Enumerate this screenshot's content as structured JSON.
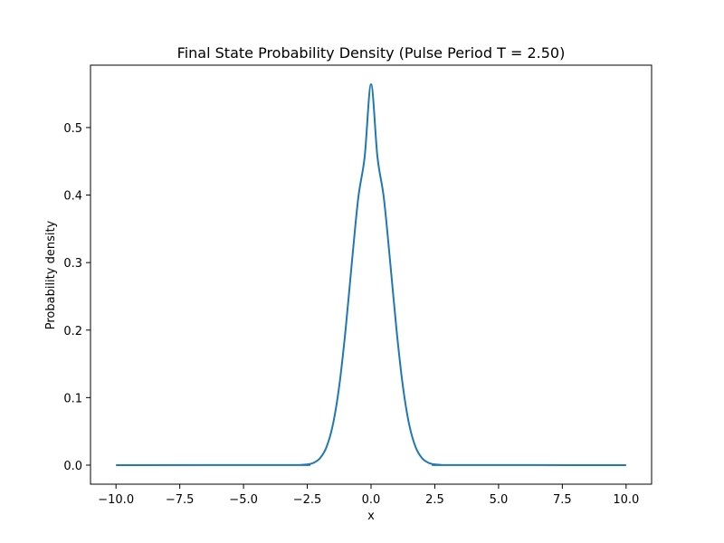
{
  "chart_data": {
    "type": "line",
    "title": "Final State Probability Density (Pulse Period T = 2.50)",
    "xlabel": "x",
    "ylabel": "Probability density",
    "xlim": [
      -11.0,
      11.0
    ],
    "ylim": [
      -0.0282,
      0.5924
    ],
    "xticks": [
      -10.0,
      -7.5,
      -5.0,
      -2.5,
      0.0,
      2.5,
      5.0,
      7.5,
      10.0
    ],
    "xtick_labels": [
      "−10.0",
      "−7.5",
      "−5.0",
      "−2.5",
      "0.0",
      "2.5",
      "5.0",
      "7.5",
      "10.0"
    ],
    "yticks": [
      0.0,
      0.1,
      0.2,
      0.3,
      0.4,
      0.5
    ],
    "ytick_labels": [
      "0.0",
      "0.1",
      "0.2",
      "0.3",
      "0.4",
      "0.5"
    ],
    "grid": false,
    "legend": "none",
    "line_color": "#1f77b4",
    "series": [
      {
        "x": [
          -10.0,
          -3.0,
          -2.75,
          -2.5,
          -2.25,
          -2.0,
          -1.75,
          -1.5,
          -1.25,
          -1.0,
          -0.75,
          -0.5,
          -0.25,
          0.0,
          0.25,
          0.5,
          0.75,
          1.0,
          1.25,
          1.5,
          1.75,
          2.0,
          2.25,
          2.5,
          2.75,
          3.0,
          10.0
        ],
        "y": [
          0.0,
          0.0001,
          0.0003,
          0.0011,
          0.0035,
          0.0103,
          0.0264,
          0.0593,
          0.1164,
          0.2,
          0.3009,
          0.3962,
          0.4567,
          0.5642,
          0.4567,
          0.3962,
          0.3009,
          0.2,
          0.1164,
          0.0593,
          0.0264,
          0.0103,
          0.0035,
          0.0011,
          0.0003,
          0.0001,
          0.0
        ]
      }
    ]
  }
}
